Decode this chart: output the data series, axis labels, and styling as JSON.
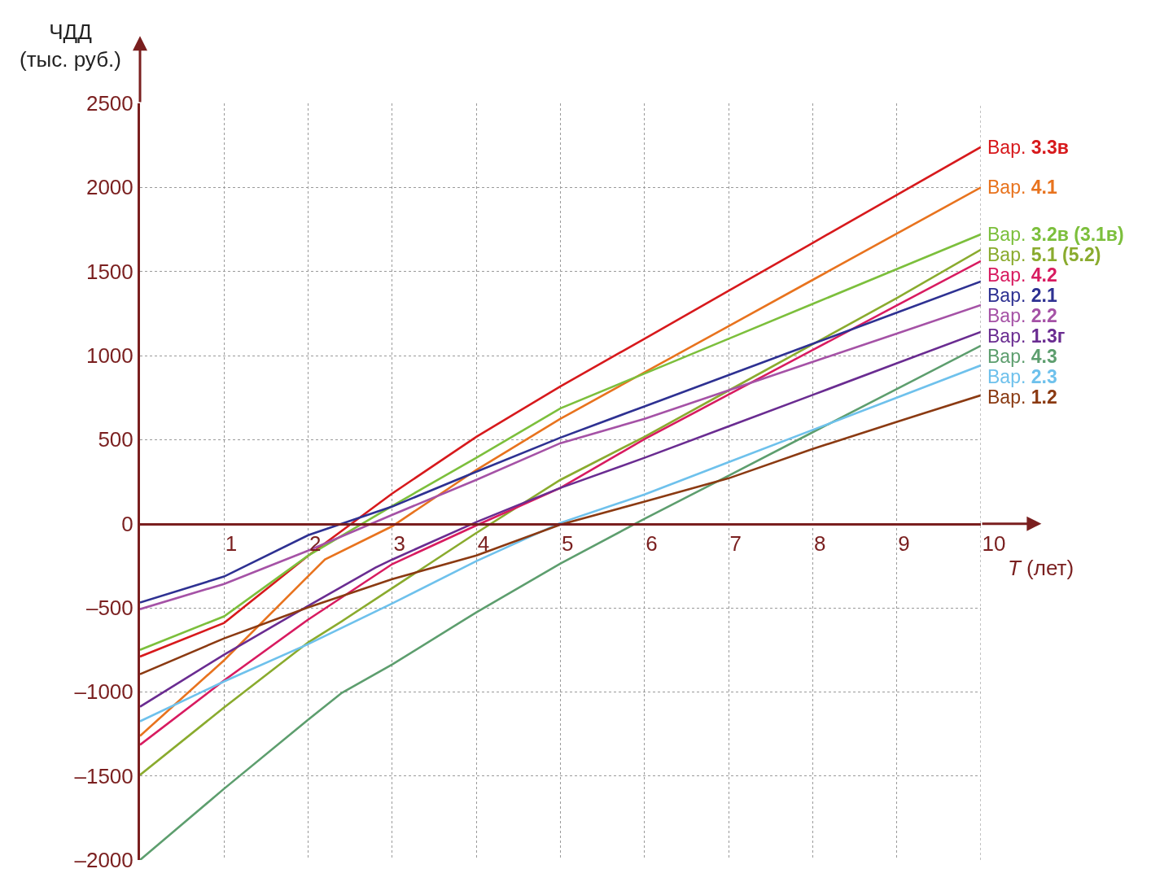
{
  "chart_data": {
    "type": "line",
    "xlabel": "T (лет)",
    "ylabel": "ЧДД\n(тыс. руб.)",
    "xlim": [
      0,
      10
    ],
    "xticks": [
      1,
      2,
      3,
      4,
      5,
      6,
      7,
      8,
      9,
      10
    ],
    "ylim": [
      -2000,
      2500
    ],
    "yticks": [
      {
        "value": -2000,
        "label": "–2000"
      },
      {
        "value": -1500,
        "label": "–1500"
      },
      {
        "value": -1000,
        "label": "–1000"
      },
      {
        "value": -500,
        "label": "–500"
      },
      0,
      500,
      1000,
      1500,
      2000,
      2500
    ],
    "grid": true,
    "legend": false,
    "marker": "none",
    "line_style": "solid",
    "series": [
      {
        "name": "Вар. 3.3в",
        "color": "#d7191c",
        "x": [
          0,
          1,
          2,
          3,
          4,
          5,
          6,
          7,
          8,
          9,
          10
        ],
        "values": [
          -790,
          -590,
          -190,
          180,
          517,
          817,
          1100,
          1385,
          1670,
          1955,
          2240
        ]
      },
      {
        "name": "Вар. 4.1",
        "color": "#e8731e",
        "x": [
          0,
          1,
          2,
          2.2,
          3,
          4,
          5,
          6,
          7,
          8,
          9,
          10
        ],
        "values": [
          -1262,
          -812,
          -312,
          -213,
          -15,
          320,
          624,
          900,
          1175,
          1450,
          1725,
          2000
        ]
      },
      {
        "name": "Вар. 3.2в (3.1в)",
        "color": "#7cbf3c",
        "x": [
          0,
          1,
          2,
          3,
          4,
          5,
          6,
          7,
          8,
          9,
          10
        ],
        "values": [
          -750,
          -551,
          -190,
          106,
          392,
          686,
          893,
          1100,
          1307,
          1514,
          1721
        ]
      },
      {
        "name": "Вар. 5.1 (5.2)",
        "color": "#8aab2e",
        "x": [
          0,
          1,
          2,
          2.4,
          4,
          5,
          6,
          7,
          8,
          9,
          10
        ],
        "values": [
          -1494,
          -1093,
          -706,
          -580,
          -55,
          261,
          517,
          792,
          1067,
          1342,
          1630
        ]
      },
      {
        "name": "Вар. 4.2",
        "color": "#d81b60",
        "x": [
          0,
          1,
          2,
          3,
          4,
          5,
          6,
          7,
          8,
          9,
          10
        ],
        "values": [
          -1315,
          -932,
          -570,
          -240,
          -10,
          213,
          503,
          768,
          1033,
          1298,
          1562
        ]
      },
      {
        "name": "Вар. 2.1",
        "color": "#2e3192",
        "x": [
          0,
          1,
          2,
          3,
          4,
          5,
          6,
          7,
          8,
          9,
          10
        ],
        "values": [
          -469,
          -314,
          -68,
          102,
          309,
          512,
          698,
          884,
          1070,
          1255,
          1441
        ]
      },
      {
        "name": "Вар. 2.2",
        "color": "#a552a6",
        "x": [
          0,
          1,
          2,
          3,
          4,
          5,
          6,
          7,
          8,
          9,
          10
        ],
        "values": [
          -508,
          -358,
          -160,
          53,
          261,
          479,
          624,
          793,
          962,
          1131,
          1300
        ]
      },
      {
        "name": "Вар. 1.3г",
        "color": "#6a2c91",
        "x": [
          0,
          1,
          2,
          2.8,
          3,
          4,
          5,
          6,
          7,
          8,
          9,
          10
        ],
        "values": [
          -1088,
          -779,
          -488,
          -261,
          -213,
          10,
          213,
          392,
          579,
          766,
          954,
          1141
        ]
      },
      {
        "name": "Вар. 4.3",
        "color": "#5d9e6e",
        "x": [
          0,
          1,
          2,
          2.4,
          3,
          4,
          5,
          6,
          7,
          8,
          9,
          10
        ],
        "values": [
          -2000,
          -1576,
          -1165,
          -1006,
          -837,
          -527,
          -237,
          29,
          286,
          544,
          801,
          1059
        ]
      },
      {
        "name": "Вар. 2.3",
        "color": "#6ec1ec",
        "x": [
          0,
          1,
          2,
          3,
          4,
          5,
          6,
          7,
          8,
          9,
          10
        ],
        "values": [
          -1175,
          -938,
          -716,
          -474,
          -222,
          5,
          174,
          366,
          558,
          750,
          942
        ]
      },
      {
        "name": "Вар. 1.2",
        "color": "#8b3a12",
        "x": [
          0,
          1,
          2,
          3,
          4,
          5,
          6,
          7,
          8,
          9,
          10
        ],
        "values": [
          -895,
          -682,
          -498,
          -329,
          -189,
          -5,
          131,
          270,
          445,
          606,
          764
        ]
      }
    ]
  }
}
